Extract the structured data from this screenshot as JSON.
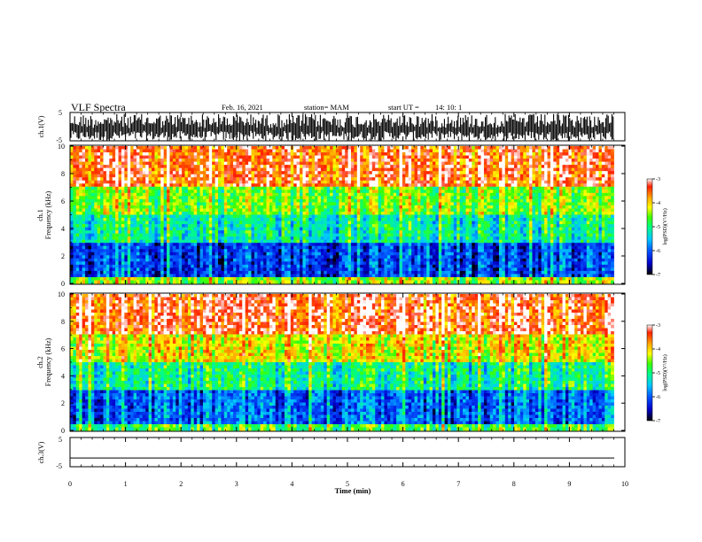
{
  "header": {
    "title": "VLF Spectra",
    "date": "Feb. 16, 2021",
    "station": "station= MAM",
    "start_ut_label": "start  UT  =",
    "start_ut_value": "14: 10: 1"
  },
  "colors": {
    "waveform": "#000000",
    "colormap": [
      "#000000",
      "#0000cc",
      "#0055ff",
      "#00c8ff",
      "#00ff80",
      "#40ff00",
      "#ffff00",
      "#ffaa00",
      "#ff2000",
      "#ffffff"
    ]
  },
  "chart_data": [
    {
      "type": "line",
      "name": "ch1-waveform",
      "ylabel": "ch.1(V)",
      "ylim": [
        -5,
        5
      ],
      "yticks": [
        "5",
        "-5"
      ],
      "xlim": [
        0,
        10
      ],
      "description_values": {
        "typical_high_V": 4.5,
        "typical_low_V": -5
      }
    },
    {
      "type": "heatmap",
      "name": "ch1-spectrogram",
      "ylabel": "ch.1\nFrequency  (kHz)",
      "ylim": [
        0,
        10
      ],
      "yticks": [
        "0",
        "2",
        "4",
        "6",
        "8",
        "10"
      ],
      "xlim": [
        0,
        9.8
      ],
      "colorbar": {
        "label": "log(PSD)(V²/Hz)",
        "range": [
          -7,
          -3
        ],
        "ticks": [
          "-3",
          "-4",
          "-5",
          "-6",
          "-7"
        ]
      },
      "bands_kHz_logPSD": [
        {
          "f": [
            0,
            0.5
          ],
          "v": -4.5
        },
        {
          "f": [
            0.5,
            3.0
          ],
          "v": -6.2
        },
        {
          "f": [
            3.0,
            5.0
          ],
          "v": -5.2
        },
        {
          "f": [
            5.0,
            7.0
          ],
          "v": -4.6
        },
        {
          "f": [
            7.0,
            10
          ],
          "v": -3.5
        }
      ]
    },
    {
      "type": "heatmap",
      "name": "ch2-spectrogram",
      "ylabel": "ch.2\nFrequency  (kHz)",
      "ylim": [
        0,
        10
      ],
      "yticks": [
        "0",
        "2",
        "4",
        "6",
        "8",
        "10"
      ],
      "xlim": [
        0,
        9.8
      ],
      "colorbar": {
        "label": "log(PSD)(V²/Hz)",
        "range": [
          -7,
          -3
        ],
        "ticks": [
          "-3",
          "-4",
          "-5",
          "-6",
          "-7"
        ]
      },
      "bands_kHz_logPSD": [
        {
          "f": [
            0,
            0.5
          ],
          "v": -4.8
        },
        {
          "f": [
            0.5,
            3.0
          ],
          "v": -6.0
        },
        {
          "f": [
            3.0,
            5.0
          ],
          "v": -5.1
        },
        {
          "f": [
            5.0,
            7.0
          ],
          "v": -4.2
        },
        {
          "f": [
            7.0,
            10
          ],
          "v": -3.4
        }
      ]
    },
    {
      "type": "line",
      "name": "ch3-waveform",
      "ylabel": "ch.3(V)",
      "ylim": [
        -5,
        5
      ],
      "yticks": [
        "5",
        "-5"
      ],
      "xlim": [
        0,
        10
      ],
      "constant_value_V": -2
    }
  ],
  "xaxis": {
    "label": "Time  (min)",
    "ticks": [
      "0",
      "1",
      "2",
      "3",
      "4",
      "5",
      "6",
      "7",
      "8",
      "9",
      "10"
    ],
    "range": [
      0,
      10
    ]
  }
}
